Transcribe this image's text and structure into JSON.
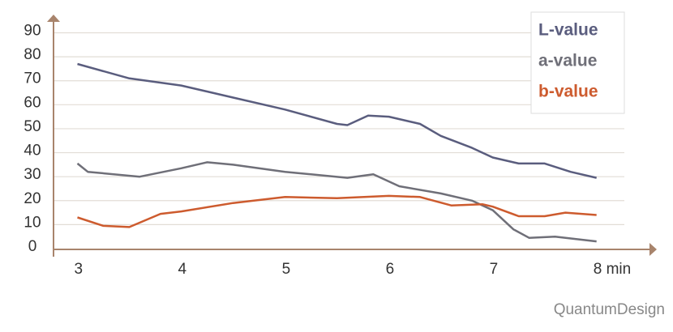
{
  "chart_data": {
    "type": "line",
    "xlim": [
      2.77,
      8.58
    ],
    "ylim": [
      0,
      97.6
    ],
    "xticks": [
      3,
      4,
      5,
      6,
      7,
      {
        "value": 8,
        "label": "8 min"
      }
    ],
    "yticks": [
      0,
      10,
      20,
      30,
      40,
      50,
      60,
      70,
      80,
      90
    ],
    "grid": true,
    "legend": "upper right",
    "series": [
      {
        "name": "L-value",
        "color": "#5a5d7e",
        "x": [
          3.0,
          3.5,
          4.0,
          4.5,
          5.0,
          5.5,
          5.6,
          5.8,
          6.0,
          6.3,
          6.5,
          6.8,
          7.0,
          7.25,
          7.5,
          7.75,
          8.0
        ],
        "values": [
          77,
          71,
          68,
          63,
          58,
          52,
          51.5,
          55.5,
          55,
          52,
          47,
          42,
          38,
          35.5,
          35.5,
          32,
          29.5
        ]
      },
      {
        "name": "a-value",
        "color": "#6f6f78",
        "x": [
          3.0,
          3.1,
          3.6,
          4.0,
          4.25,
          4.5,
          5.0,
          5.6,
          5.85,
          6.1,
          6.5,
          6.8,
          7.0,
          7.2,
          7.35,
          7.6,
          8.0
        ],
        "values": [
          35.5,
          32,
          30,
          33.5,
          36,
          35,
          32,
          29.5,
          31,
          26,
          23,
          20,
          16,
          8,
          4.5,
          5,
          3
        ]
      },
      {
        "name": "b-value",
        "color": "#cd5b2e",
        "x": [
          3.0,
          3.25,
          3.5,
          3.8,
          4.0,
          4.5,
          5.0,
          5.5,
          6.0,
          6.3,
          6.6,
          6.9,
          7.0,
          7.25,
          7.5,
          7.7,
          8.0
        ],
        "values": [
          13,
          9.5,
          9,
          14.5,
          15.5,
          19,
          21.5,
          21,
          22,
          21.5,
          18,
          18.5,
          17.5,
          13.5,
          13.5,
          15,
          14
        ]
      }
    ],
    "watermark": "QuantumDesign"
  }
}
